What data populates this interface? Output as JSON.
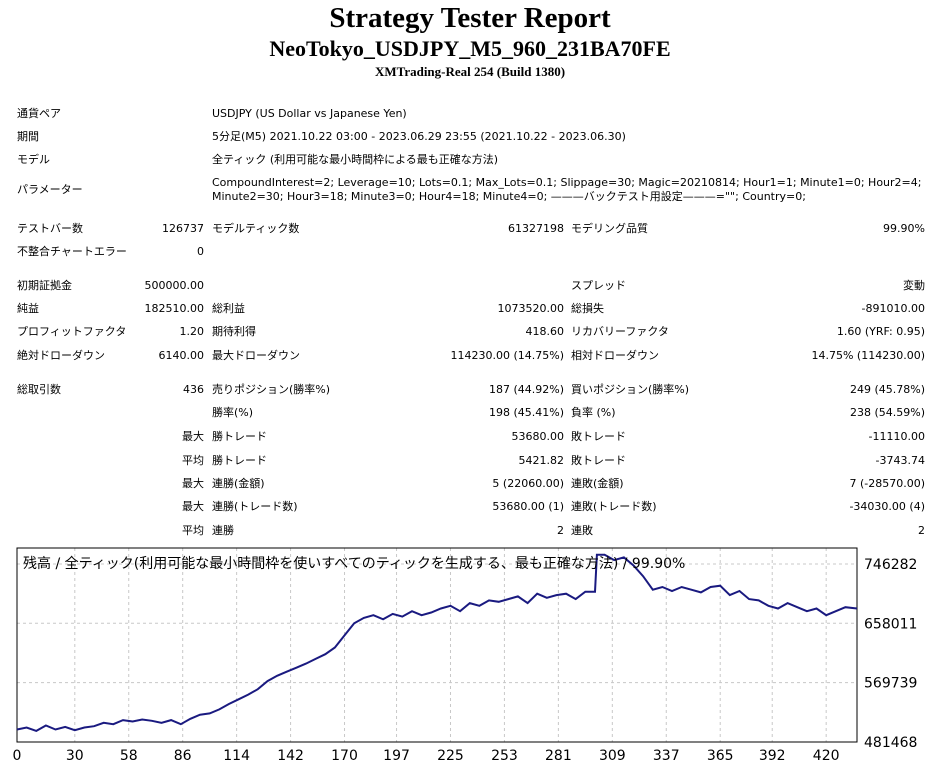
{
  "header": {
    "title": "Strategy Tester Report",
    "expert": "NeoTokyo_USDJPY_M5_960_231BA70FE",
    "server": "XMTrading-Real 254 (Build 1380)"
  },
  "info": {
    "symbol_label": "通貨ペア",
    "symbol": "USDJPY (US Dollar vs Japanese Yen)",
    "period_label": "期間",
    "period": "5分足(M5) 2021.10.22 03:00 - 2023.06.29 23:55 (2021.10.22 - 2023.06.30)",
    "model_label": "モデル",
    "model": "全ティック (利用可能な最小時間枠による最も正確な方法)",
    "params_label": "パラメーター",
    "params_line1": "CompoundInterest=2; Leverage=10; Lots=0.1; Max_Lots=0.1; Slippage=30; Magic=20210814; Hour1=1; Minute1=0; Hour2=4;",
    "params_line2": "Minute2=30; Hour3=18; Minute3=0; Hour4=18; Minute4=0; ———バックテスト用設定———=\"\"; Country=0;"
  },
  "stats": {
    "bars_label": "テストバー数",
    "bars": "126737",
    "ticks_label": "モデルティック数",
    "ticks": "61327198",
    "quality_label": "モデリング品質",
    "quality": "99.90%",
    "mismatch_label": "不整合チャートエラー",
    "mismatch": "0",
    "deposit_label": "初期証拠金",
    "deposit": "500000.00",
    "spread_label": "スプレッド",
    "spread": "変動",
    "net_label": "純益",
    "net": "182510.00",
    "gross_profit_label": "総利益",
    "gross_profit": "1073520.00",
    "gross_loss_label": "総損失",
    "gross_loss": "-891010.00",
    "pf_label": "プロフィットファクタ",
    "pf": "1.20",
    "expected_label": "期待利得",
    "expected": "418.60",
    "recovery_label": "リカバリーファクタ",
    "recovery": "1.60 (YRF: 0.95)",
    "abs_dd_label": "絶対ドローダウン",
    "abs_dd": "6140.00",
    "max_dd_label": "最大ドローダウン",
    "max_dd": "114230.00 (14.75%)",
    "rel_dd_label": "相対ドローダウン",
    "rel_dd": "14.75% (114230.00)",
    "trades_label": "総取引数",
    "trades": "436",
    "short_label": "売りポジション(勝率%)",
    "short": "187 (44.92%)",
    "long_label": "買いポジション(勝率%)",
    "long": "249 (45.78%)",
    "winrate_label": "勝率(%)",
    "winrate": "198 (45.41%)",
    "lossrate_label": "負率 (%)",
    "lossrate": "238 (54.59%)",
    "max_word": "最大",
    "avg_word": "平均",
    "win_trade_label": "勝トレード",
    "loss_trade_label": "敗トレード",
    "max_win": "53680.00",
    "max_loss": "-11110.00",
    "avg_win": "5421.82",
    "avg_loss": "-3743.74",
    "cons_win_amt_label": "連勝(金額)",
    "cons_win_amt": "5 (22060.00)",
    "cons_loss_amt_label": "連敗(金額)",
    "cons_loss_amt": "7 (-28570.00)",
    "cons_win_cnt_label": "連勝(トレード数)",
    "cons_win_cnt": "53680.00 (1)",
    "cons_loss_cnt_label": "連敗(トレード数)",
    "cons_loss_cnt": "-34030.00 (4)",
    "avg_cons_win_label": "連勝",
    "avg_cons_win": "2",
    "avg_cons_loss_label": "連敗",
    "avg_cons_loss": "2"
  },
  "chart_data": {
    "type": "line",
    "title": "残高 / 全ティック(利用可能な最小時間枠を使いすべてのティックを生成する、最も正確な方法) / 99.90%",
    "x_ticks": [
      0,
      30,
      58,
      86,
      114,
      142,
      170,
      197,
      225,
      253,
      281,
      309,
      337,
      365,
      392,
      420
    ],
    "y_ticks": [
      746282,
      658011,
      569739,
      481468
    ],
    "xlim": [
      0,
      436
    ],
    "ylim": [
      481468,
      770000
    ],
    "grid": true,
    "line_color": "#1a1a80",
    "series": [
      {
        "x": [
          0,
          5,
          10,
          15,
          20,
          25,
          30,
          35,
          40,
          45,
          50,
          55,
          60,
          65,
          70,
          75,
          80,
          85,
          90,
          95,
          100,
          105,
          110,
          115,
          120,
          125,
          130,
          135,
          140,
          145,
          150,
          155,
          160,
          165,
          170,
          175,
          180,
          185,
          190,
          195,
          200,
          205,
          210,
          215,
          220,
          225,
          230,
          235,
          240,
          245,
          250,
          255,
          260,
          265,
          270,
          275,
          280,
          285,
          290,
          295,
          300,
          301,
          305,
          310,
          315,
          320,
          325,
          330,
          335,
          340,
          345,
          350,
          355,
          360,
          365,
          370,
          375,
          380,
          385,
          390,
          395,
          400,
          405,
          410,
          415,
          420,
          425,
          430,
          436
        ],
        "y": [
          500000,
          503000,
          498000,
          506000,
          500000,
          504000,
          499000,
          503000,
          505000,
          510000,
          508000,
          514000,
          512000,
          515000,
          513000,
          510000,
          514000,
          508000,
          516000,
          522000,
          524000,
          530000,
          538000,
          545000,
          552000,
          560000,
          572000,
          580000,
          586000,
          592000,
          598000,
          605000,
          612000,
          622000,
          640000,
          658000,
          666000,
          670000,
          664000,
          672000,
          668000,
          676000,
          670000,
          674000,
          680000,
          684000,
          676000,
          688000,
          684000,
          692000,
          690000,
          694000,
          698000,
          688000,
          702000,
          696000,
          700000,
          702000,
          694000,
          705000,
          705000,
          760000,
          760000,
          752000,
          756000,
          744000,
          728000,
          708000,
          712000,
          706000,
          712000,
          708000,
          704000,
          712000,
          714000,
          700000,
          706000,
          694000,
          692000,
          684000,
          680000,
          688000,
          682000,
          676000,
          680000,
          670000,
          676000,
          682000,
          680000
        ]
      }
    ]
  }
}
